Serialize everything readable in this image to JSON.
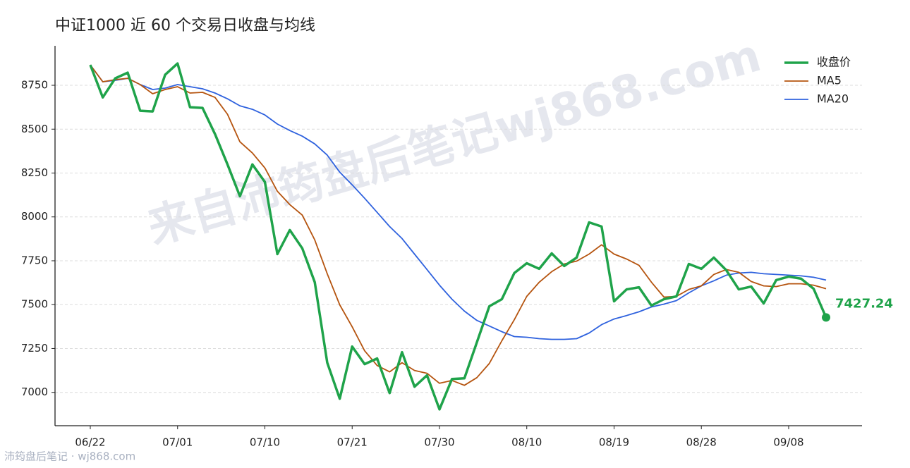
{
  "chart_data": {
    "type": "line",
    "title": "中证1000 近 60 个交易日收盘与均线",
    "watermark": "来自沛筠盘后笔记wj868.com",
    "footer": "沛筠盘后笔记 · wj868.com",
    "categories": [
      "06/22",
      null,
      null,
      null,
      null,
      null,
      null,
      "07/01",
      null,
      null,
      null,
      null,
      null,
      null,
      "07/10",
      null,
      null,
      null,
      null,
      null,
      null,
      "07/21",
      null,
      null,
      null,
      null,
      null,
      null,
      "07/30",
      null,
      null,
      null,
      null,
      null,
      null,
      "08/10",
      null,
      null,
      null,
      null,
      null,
      null,
      "08/19",
      null,
      null,
      null,
      null,
      null,
      null,
      "08/28",
      null,
      null,
      null,
      null,
      null,
      null,
      "09/08",
      null,
      null,
      null
    ],
    "series": [
      {
        "name": "收盘价",
        "color": "#1fa34a",
        "values": [
          8866,
          8681,
          8790,
          8822,
          8605,
          8601,
          8810,
          8874,
          8625,
          8621,
          8472,
          8299,
          8118,
          8299,
          8199,
          7788,
          7925,
          7821,
          7628,
          7169,
          6964,
          7261,
          7161,
          7193,
          6996,
          7229,
          7032,
          7097,
          6903,
          7076,
          7080,
          7285,
          7491,
          7531,
          7680,
          7736,
          7704,
          7792,
          7720,
          7768,
          7969,
          7945,
          7519,
          7587,
          7599,
          7495,
          7531,
          7547,
          7732,
          7704,
          7768,
          7696,
          7587,
          7603,
          7507,
          7640,
          7660,
          7648,
          7591,
          7427.24
        ]
      },
      {
        "name": "MA5",
        "color": "#b5540f",
        "values": [
          8866,
          8770,
          8782,
          8790,
          8754,
          8702,
          8726,
          8742,
          8706,
          8710,
          8681,
          8585,
          8428,
          8364,
          8279,
          8146,
          8070,
          8010,
          7869,
          7676,
          7499,
          7374,
          7237,
          7153,
          7117,
          7169,
          7125,
          7109,
          7052,
          7068,
          7040,
          7084,
          7165,
          7294,
          7414,
          7547,
          7628,
          7688,
          7732,
          7748,
          7788,
          7841,
          7788,
          7760,
          7724,
          7628,
          7543,
          7547,
          7587,
          7607,
          7672,
          7700,
          7684,
          7632,
          7607,
          7603,
          7619,
          7619,
          7611,
          7591
        ]
      },
      {
        "name": "MA20",
        "color": "#2f62de",
        "values": [
          8866,
          8770,
          8778,
          8790,
          8754,
          8726,
          8734,
          8754,
          8742,
          8730,
          8706,
          8673,
          8633,
          8613,
          8581,
          8529,
          8492,
          8460,
          8416,
          8352,
          8255,
          8183,
          8106,
          8026,
          7945,
          7877,
          7788,
          7700,
          7611,
          7531,
          7463,
          7410,
          7378,
          7346,
          7318,
          7314,
          7306,
          7302,
          7302,
          7306,
          7338,
          7386,
          7418,
          7438,
          7459,
          7487,
          7503,
          7523,
          7567,
          7607,
          7636,
          7668,
          7680,
          7684,
          7676,
          7672,
          7668,
          7664,
          7656,
          7640
        ]
      }
    ],
    "ylim": [
      6810,
      8975
    ],
    "yticks": [
      7000,
      7250,
      7500,
      7750,
      8000,
      8250,
      8500,
      8750
    ],
    "grid": true,
    "legend": "upper right"
  }
}
